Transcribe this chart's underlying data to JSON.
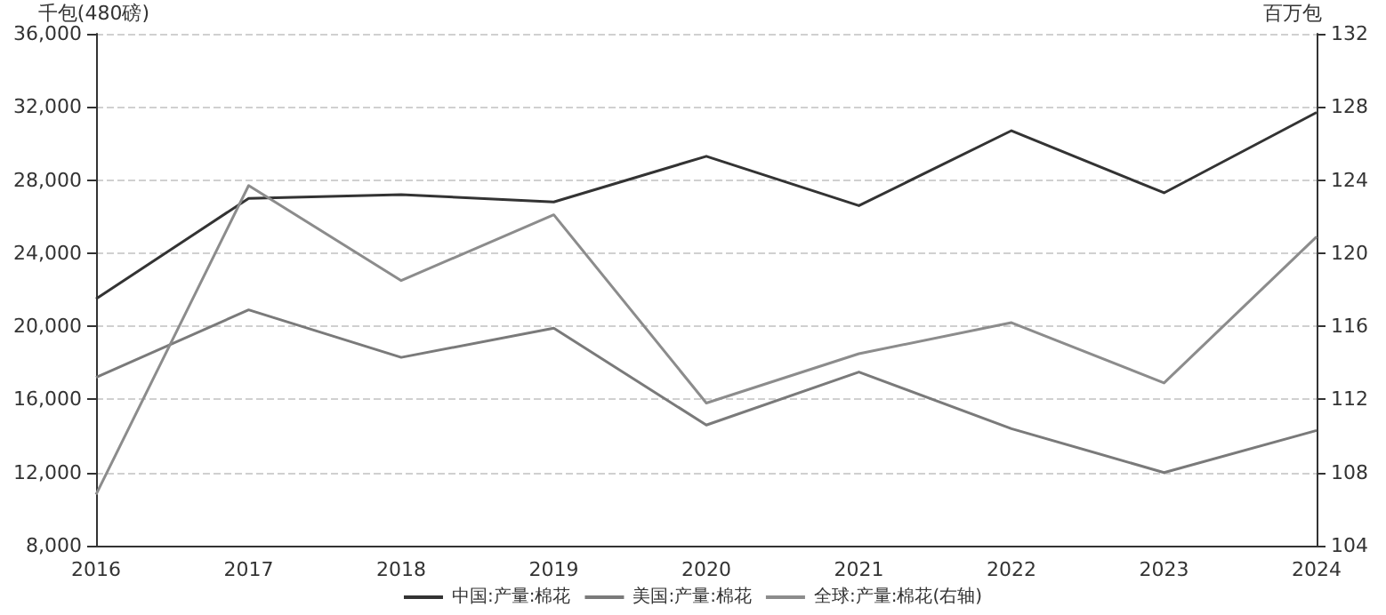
{
  "chart_data": {
    "type": "line",
    "ylabel": "千包(480磅)",
    "y2label": "百万包",
    "categories": [
      "2016",
      "2017",
      "2018",
      "2019",
      "2020",
      "2021",
      "2022",
      "2023",
      "2024"
    ],
    "series": [
      {
        "name": "中国:产量:棉花",
        "color": "#333333",
        "values": [
          21500,
          27000,
          27200,
          26800,
          29300,
          26600,
          30700,
          27300,
          31700
        ]
      },
      {
        "name": "美国:产量:棉花",
        "color": "#7a7a7a",
        "values": [
          17200,
          20900,
          18300,
          19900,
          14600,
          17500,
          14400,
          12000,
          14300
        ]
      },
      {
        "name": "全球:产量:棉花(右轴)",
        "color": "#8c8c8c",
        "axis": "y2",
        "values": [
          106.8,
          123.7,
          118.5,
          122.1,
          111.8,
          114.5,
          116.2,
          112.9,
          120.9
        ]
      }
    ],
    "ylim": [
      8000,
      36000
    ],
    "yticks": [
      {
        "value": 8000,
        "label": "8,000"
      },
      {
        "value": 12000,
        "label": "12,000"
      },
      {
        "value": 16000,
        "label": "16,000"
      },
      {
        "value": 20000,
        "label": "20,000"
      },
      {
        "value": 24000,
        "label": "24,000"
      },
      {
        "value": 28000,
        "label": "28,000"
      },
      {
        "value": 32000,
        "label": "32,000"
      },
      {
        "value": 36000,
        "label": "36,000"
      }
    ],
    "y2lim": [
      104,
      132
    ],
    "y2ticks": [
      104,
      108,
      112,
      116,
      120,
      124,
      128,
      132
    ],
    "grid": "y",
    "legend": "bottom",
    "marker": "none",
    "line_style": "solid"
  }
}
